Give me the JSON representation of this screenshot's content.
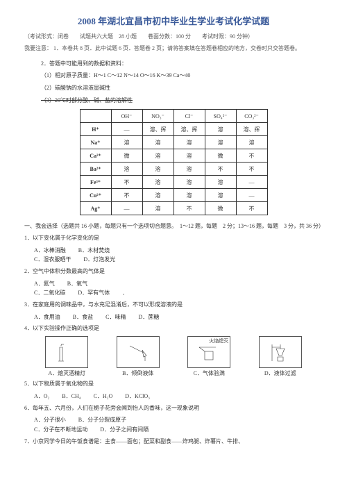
{
  "title": "2008 年湖北宜昌市初中毕业生学业考试化学试题",
  "info": "（考试形式：闭卷　　试题共六大题　28 小题　　卷面分数：100 分　　考试时限：90 分钟）",
  "notice_label": "我要注意：",
  "notice_1": "1．本卷共 8 页．此中试题 6 页．答题卷 2 页；请将答案填在答题卷相应的地方，交卷时只交答题卷。",
  "notice_2": "2．答题中可能用到的数据和资料：",
  "notice_2_1": "（1）相对原子质量：H～1 C～12 N～14 O～16 K～39 Ca～40",
  "notice_2_2": "（2）碳酸钠的水溶液显碱性",
  "notice_2_3": "（3）20℃时部分酸、碱、盐的溶解性",
  "table": {
    "head": [
      "",
      "OH⁻",
      "NO₃⁻",
      "Cl⁻",
      "SO₄²⁻",
      "CO₃²⁻"
    ],
    "rows": [
      [
        "H⁺",
        "—",
        "溶、挥",
        "溶、挥",
        "溶",
        "溶、挥"
      ],
      [
        "Na⁺",
        "溶",
        "溶",
        "溶",
        "溶",
        "溶"
      ],
      [
        "Ca²⁺",
        "微",
        "溶",
        "溶",
        "微",
        "不"
      ],
      [
        "Ba²⁺",
        "溶",
        "溶",
        "溶",
        "不",
        "不"
      ],
      [
        "Fe³⁺",
        "不",
        "溶",
        "溶",
        "溶",
        "—"
      ],
      [
        "Cu²⁺",
        "不",
        "溶",
        "溶",
        "溶",
        "—"
      ],
      [
        "Ag⁺",
        "—",
        "溶",
        "不",
        "微",
        "不"
      ]
    ]
  },
  "sec1": "一、我会选择（选题共 16 小题，每题只有一个选项切合题意。　1～12 题，每题　2 分；13～16 题，每题　3 分，共 36 分）",
  "q1": "1．以下变化属于化学变化的是",
  "q1o": [
    "A．冰棒消融",
    "B．木材焚烧",
    "C．湿衣服晒干",
    "D．灯泡发光"
  ],
  "q2": "2．空气中体积分数最高的气体是",
  "q2o": [
    "A．氮气",
    "B．氧气",
    "C．二氧化碳",
    "D．罕有气体"
  ],
  "q3": "3．在家庭用的调味品中，与水充足混淆后，不可以形成溶液的是",
  "q3o": [
    "A．食用油",
    "B．食盐",
    "C．味精",
    "D．蔗糖"
  ],
  "q4": "4．以下实验操作正确的选项是",
  "q4cap": [
    "A．熄灭酒精灯",
    "B．倾倒液体",
    "C．气体验满",
    "D．液体过滤"
  ],
  "q4label": "火焰熄灭",
  "q5": "5．以下物质属于氧化物的是",
  "q5o": [
    "A．O₂",
    "B．CH₄",
    "C．H₂O",
    "D．KClO₃"
  ],
  "q6": "6．每年五、六月份，人们在栀子花旁会闻到怡人的香味，这一现象说明",
  "q6o": [
    "A．分子很小",
    "B．分子分裂成原子",
    "C．分子在不断地运动",
    "D．分子之间有间隔"
  ],
  "q7": "7．小京同学今日的午饭食谱是：主食——面包；配菜和副食——炸鸡腿、炸薯片、牛排、"
}
